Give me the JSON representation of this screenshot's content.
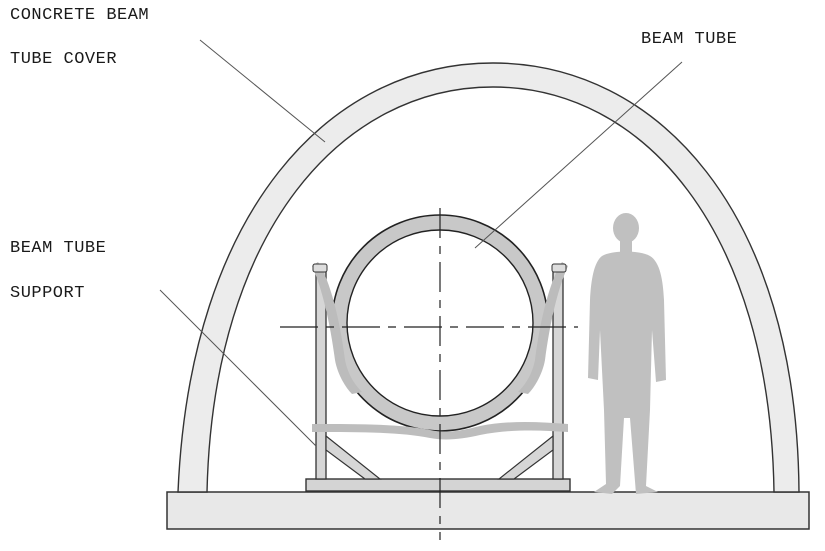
{
  "labels": {
    "cover_line1": "CONCRETE BEAM",
    "cover_line2": "TUBE COVER",
    "beam_tube": "BEAM TUBE",
    "support_line1": "BEAM TUBE",
    "support_line2": "SUPPORT"
  },
  "colors": {
    "concrete_fill": "#ececec",
    "outline": "#333333",
    "support_fill": "#d4d4d4",
    "person_fill": "#c0c0c0",
    "leader_line": "#555555"
  }
}
